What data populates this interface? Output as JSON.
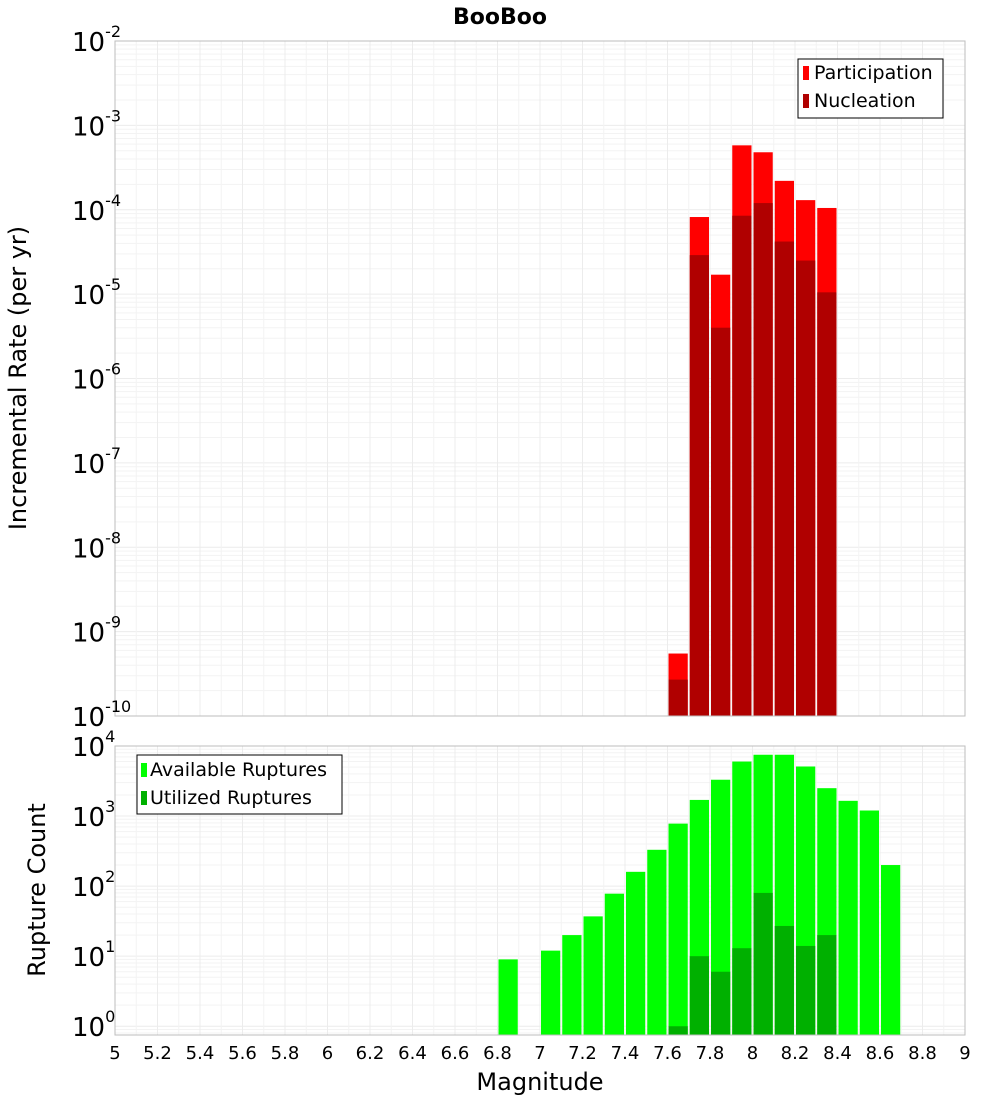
{
  "chart_data": [
    {
      "type": "bar",
      "title": "BooBoo",
      "ylabel": "Incremental Rate (per yr)",
      "yscale": "log",
      "ylim": [
        1e-10,
        0.01
      ],
      "xlim": [
        5,
        9
      ],
      "bin_width": 0.1,
      "grid": true,
      "legend_position": "top-right",
      "x": [
        7.65,
        7.75,
        7.85,
        7.95,
        8.05,
        8.15,
        8.25,
        8.35
      ],
      "series": [
        {
          "name": "Participation",
          "color": "#ff0000",
          "values": [
            5.5e-10,
            8.2e-05,
            1.7e-05,
            0.00058,
            0.00048,
            0.00022,
            0.00013,
            0.000105
          ]
        },
        {
          "name": "Nucleation",
          "color": "#b00000",
          "values": [
            2.7e-10,
            2.9e-05,
            4e-06,
            8.5e-05,
            0.00012,
            4.2e-05,
            2.5e-05,
            1.05e-05
          ]
        }
      ]
    },
    {
      "type": "bar",
      "title": "",
      "xlabel": "Magnitude",
      "ylabel": "Rupture Count",
      "yscale": "log",
      "ylim": [
        0.75,
        10000
      ],
      "xlim": [
        5,
        9
      ],
      "bin_width": 0.1,
      "grid": true,
      "legend_position": "top-left",
      "x": [
        6.85,
        7.05,
        7.15,
        7.25,
        7.35,
        7.45,
        7.55,
        7.65,
        7.75,
        7.85,
        7.95,
        8.05,
        8.15,
        8.25,
        8.35,
        8.45,
        8.55,
        8.65
      ],
      "series": [
        {
          "name": "Available Ruptures",
          "color": "#00ff00",
          "values": [
            9,
            12,
            20,
            37,
            78,
            160,
            330,
            780,
            1700,
            3300,
            6000,
            7500,
            7500,
            5100,
            2500,
            1650,
            1200,
            200
          ]
        },
        {
          "name": "Utilized Ruptures",
          "color": "#00b000",
          "values": [
            0,
            0,
            0,
            0,
            0,
            0,
            0,
            1,
            10,
            6,
            13,
            80,
            27,
            14,
            20,
            0,
            0,
            0
          ]
        }
      ]
    }
  ],
  "x_ticks": [
    "5",
    "5.2",
    "5.4",
    "5.6",
    "5.8",
    "6",
    "6.2",
    "6.4",
    "6.6",
    "6.8",
    "7",
    "7.2",
    "7.4",
    "7.6",
    "7.8",
    "8",
    "8.2",
    "8.4",
    "8.6",
    "8.8",
    "9"
  ],
  "top_y_ticks": [
    {
      "base": "10",
      "exp": "-2"
    },
    {
      "base": "10",
      "exp": "-3"
    },
    {
      "base": "10",
      "exp": "-4"
    },
    {
      "base": "10",
      "exp": "-5"
    },
    {
      "base": "10",
      "exp": "-6"
    },
    {
      "base": "10",
      "exp": "-7"
    },
    {
      "base": "10",
      "exp": "-8"
    },
    {
      "base": "10",
      "exp": "-9"
    },
    {
      "base": "10",
      "exp": "-10"
    }
  ],
  "bottom_y_ticks": [
    {
      "base": "10",
      "exp": "4"
    },
    {
      "base": "10",
      "exp": "3"
    },
    {
      "base": "10",
      "exp": "2"
    },
    {
      "base": "10",
      "exp": "1"
    },
    {
      "base": "10",
      "exp": "0"
    }
  ],
  "colors": {
    "grid": "#ececec",
    "grid_minor": "#f3f3f3",
    "plot_border": "#bdbdbd",
    "legend_border": "#000000"
  }
}
